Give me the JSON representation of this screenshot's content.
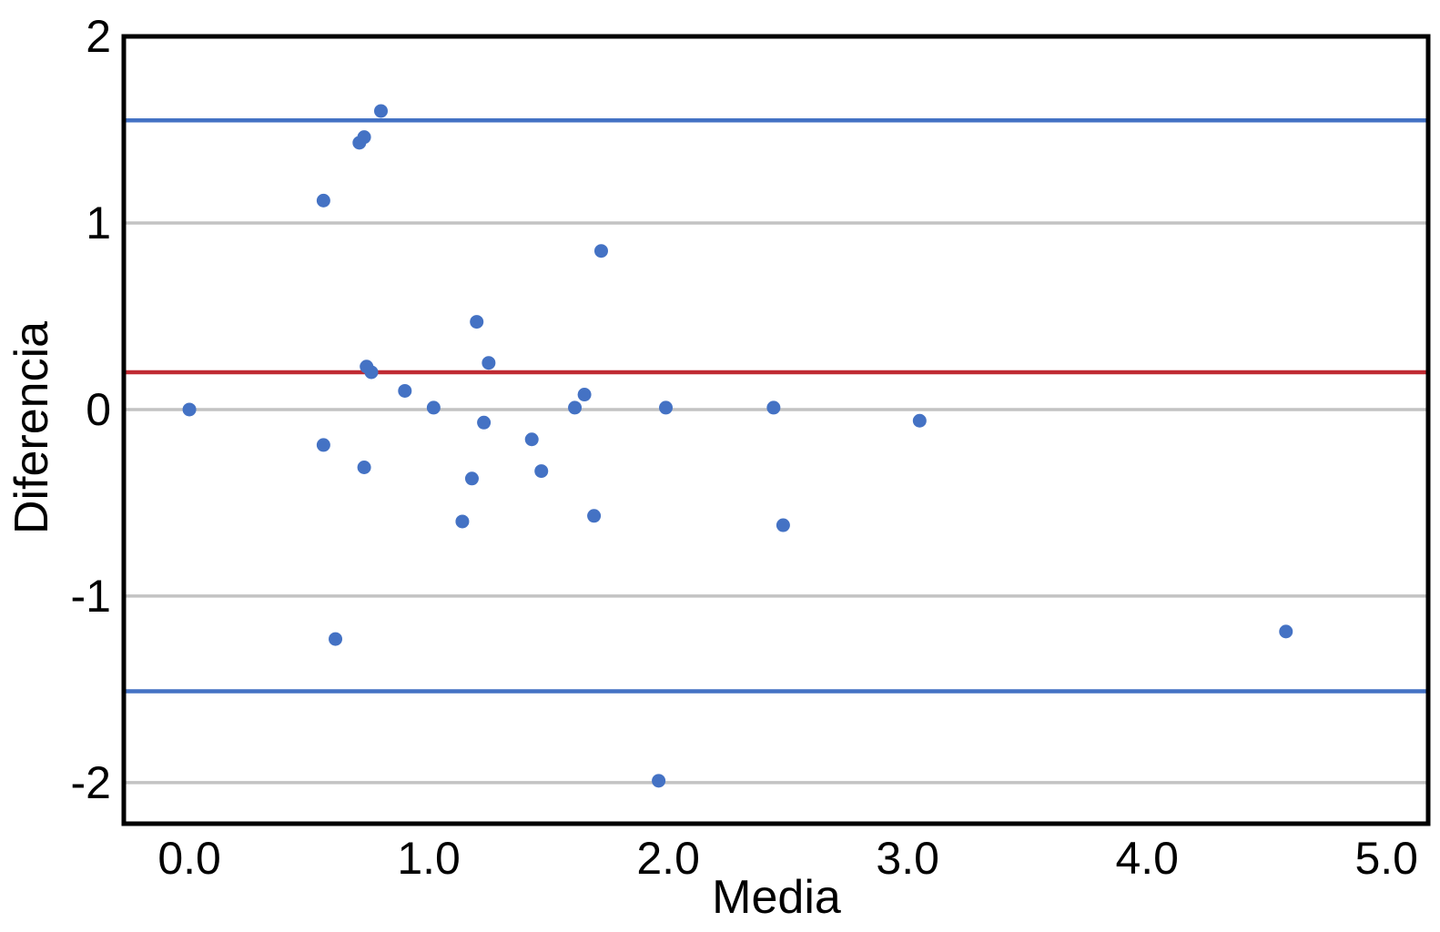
{
  "chart_data": {
    "type": "scatter",
    "title": "",
    "xlabel": "Media",
    "ylabel": "Diferencia",
    "x_tick_values": [
      0,
      1,
      2,
      3,
      4,
      5
    ],
    "x_tick_labels": [
      "0.0",
      "1.0",
      "2.0",
      "3.0",
      "4.0",
      "5.0"
    ],
    "y_tick_values": [
      2,
      1,
      0,
      -1,
      -2
    ],
    "y_tick_labels": [
      "2",
      "1",
      "0",
      "-1",
      "-2"
    ],
    "xlim": [
      -0.274,
      5.174
    ],
    "ylim": [
      -2.22,
      2.0
    ],
    "grid": {
      "horizontal_at": [
        1,
        0,
        -1,
        -2
      ],
      "color": "#c3c3c3",
      "width": 3.5
    },
    "axis_color": "#000000",
    "axis_border_width": 5,
    "plot_bg": "#ffffff",
    "legend": "none",
    "reference_lines": [
      {
        "name": "mean-difference-line",
        "y": 0.2,
        "color": "#c02b33",
        "width": 4.5
      },
      {
        "name": "upper-limit-of-agreement-line",
        "y": 1.55,
        "color": "#4472c4",
        "width": 4.5
      },
      {
        "name": "lower-limit-of-agreement-line",
        "y": -1.51,
        "color": "#4472c4",
        "width": 4.5
      }
    ],
    "series": [
      {
        "name": "differences",
        "color": "#4472c4",
        "marker_radius": 7.5,
        "points": [
          [
            0.0,
            0.0
          ],
          [
            0.56,
            1.12
          ],
          [
            0.56,
            -0.19
          ],
          [
            0.61,
            -1.23
          ],
          [
            0.71,
            1.43
          ],
          [
            0.73,
            1.46
          ],
          [
            0.74,
            0.23
          ],
          [
            0.76,
            0.2
          ],
          [
            0.73,
            -0.31
          ],
          [
            0.8,
            1.6
          ],
          [
            0.9,
            0.1
          ],
          [
            1.02,
            0.01
          ],
          [
            1.14,
            -0.6
          ],
          [
            1.18,
            -0.37
          ],
          [
            1.2,
            0.47
          ],
          [
            1.23,
            -0.07
          ],
          [
            1.25,
            0.25
          ],
          [
            1.43,
            -0.16
          ],
          [
            1.47,
            -0.33
          ],
          [
            1.61,
            0.01
          ],
          [
            1.65,
            0.08
          ],
          [
            1.69,
            -0.57
          ],
          [
            1.72,
            0.85
          ],
          [
            1.96,
            -1.99
          ],
          [
            1.99,
            0.01
          ],
          [
            2.44,
            0.01
          ],
          [
            2.48,
            -0.62
          ],
          [
            3.05,
            -0.06
          ],
          [
            4.58,
            -1.19
          ]
        ]
      }
    ]
  }
}
